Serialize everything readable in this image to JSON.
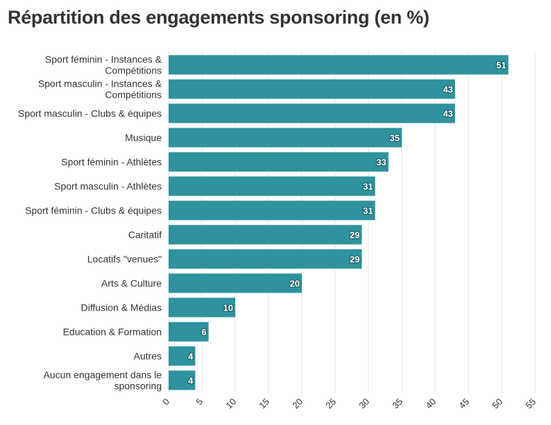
{
  "chart_data": {
    "type": "bar",
    "orientation": "horizontal",
    "title": "Répartition des engagements sponsoring (en %)",
    "xlabel": "",
    "ylabel": "",
    "categories": [
      "Sport féminin - Instances & Compétitions",
      "Sport masculin - Instances & Compétitions",
      "Sport masculin - Clubs & équipes",
      "Musique",
      "Sport féminin - Athlètes",
      "Sport masculin - Athlètes",
      "Sport féminin - Clubs & équipes",
      "Caritatif",
      "Locatifs \"venues\"",
      "Arts & Culture",
      "Diffusion & Médias",
      "Education & Formation",
      "Autres",
      "Aucun engagement dans le sponsoring"
    ],
    "category_lines": [
      [
        "Sport féminin - Instances &",
        "Compétitions"
      ],
      [
        "Sport masculin - Instances &",
        "Compétitions"
      ],
      [
        "Sport masculin - Clubs & équipes"
      ],
      [
        "Musique"
      ],
      [
        "Sport féminin - Athlètes"
      ],
      [
        "Sport masculin - Athlètes"
      ],
      [
        "Sport féminin - Clubs & équipes"
      ],
      [
        "Caritatif"
      ],
      [
        "Locatifs \"venues\""
      ],
      [
        "Arts & Culture"
      ],
      [
        "Diffusion & Médias"
      ],
      [
        "Education & Formation"
      ],
      [
        "Autres"
      ],
      [
        "Aucun engagement dans le",
        "sponsoring"
      ]
    ],
    "values": [
      51,
      43,
      43,
      35,
      33,
      31,
      31,
      29,
      29,
      20,
      10,
      6,
      4,
      4
    ],
    "xlim": [
      0,
      55
    ],
    "xticks": [
      0,
      5,
      10,
      15,
      20,
      25,
      30,
      35,
      40,
      45,
      50,
      55
    ],
    "grid": true,
    "legend": "none",
    "bar_color": "#2e939e",
    "data_labels": true
  }
}
